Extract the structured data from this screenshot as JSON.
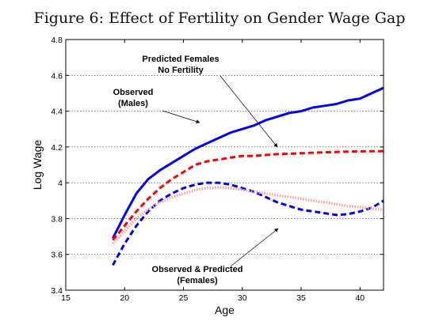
{
  "figure_title": "Figure 6: Effect of Fertility on Gender Wage Gap",
  "chart_data": {
    "type": "line",
    "xlabel": "Age",
    "ylabel": "Log Wage",
    "xlim": [
      15,
      42
    ],
    "ylim": [
      3.4,
      4.8
    ],
    "xticks": [
      15,
      20,
      25,
      30,
      35,
      40
    ],
    "yticks": [
      3.4,
      3.6,
      3.8,
      4,
      4.2,
      4.4,
      4.6,
      4.8
    ],
    "xtick_labels": [
      "15",
      "20",
      "25",
      "30",
      "35",
      "40"
    ],
    "ytick_labels": [
      "3.4",
      "3.6",
      "3.8",
      "4",
      "4.2",
      "4.4",
      "4.6",
      "4.8"
    ],
    "grid": "horizontal dotted",
    "series": [
      {
        "id": "males",
        "color": "#0000ff",
        "style": "solid",
        "x": [
          19,
          20,
          21,
          22,
          23,
          24,
          25,
          26,
          27,
          28,
          29,
          30,
          31,
          32,
          33,
          34,
          35,
          36,
          37,
          38,
          39,
          40,
          41,
          42
        ],
        "y": [
          3.69,
          3.82,
          3.94,
          4.02,
          4.07,
          4.11,
          4.15,
          4.19,
          4.22,
          4.25,
          4.28,
          4.3,
          4.32,
          4.35,
          4.37,
          4.39,
          4.4,
          4.42,
          4.43,
          4.44,
          4.46,
          4.47,
          4.5,
          4.53
        ]
      },
      {
        "id": "predicted-females-no-fertility",
        "color": "#ff0000",
        "style": "dashed",
        "x": [
          19,
          20,
          21,
          22,
          23,
          24,
          25,
          26,
          27,
          28,
          29,
          30,
          31,
          32,
          33,
          34,
          35,
          36,
          37,
          38,
          39,
          40,
          41,
          42
        ],
        "y": [
          3.68,
          3.76,
          3.84,
          3.91,
          3.97,
          4.02,
          4.06,
          4.1,
          4.12,
          4.13,
          4.14,
          4.15,
          4.15,
          4.155,
          4.16,
          4.162,
          4.165,
          4.168,
          4.17,
          4.172,
          4.174,
          4.175,
          4.176,
          4.177
        ]
      },
      {
        "id": "observed-females",
        "color": "#0000ff",
        "style": "dashed",
        "x": [
          19,
          20,
          21,
          22,
          23,
          24,
          25,
          26,
          27,
          28,
          29,
          30,
          31,
          32,
          33,
          34,
          35,
          36,
          37,
          38,
          39,
          40,
          41,
          42
        ],
        "y": [
          3.54,
          3.66,
          3.76,
          3.84,
          3.9,
          3.94,
          3.97,
          3.99,
          4.0,
          4.0,
          3.99,
          3.97,
          3.95,
          3.92,
          3.89,
          3.87,
          3.85,
          3.84,
          3.83,
          3.82,
          3.825,
          3.84,
          3.86,
          3.9
        ]
      },
      {
        "id": "predicted-females",
        "color": "#ff9999",
        "style": "dotted",
        "x": [
          19,
          20,
          21,
          22,
          23,
          24,
          25,
          26,
          27,
          28,
          29,
          30,
          31,
          32,
          33,
          34,
          35,
          36,
          37,
          38,
          39,
          40,
          41,
          42
        ],
        "y": [
          3.66,
          3.73,
          3.8,
          3.85,
          3.89,
          3.92,
          3.94,
          3.96,
          3.97,
          3.975,
          3.97,
          3.96,
          3.95,
          3.94,
          3.93,
          3.92,
          3.91,
          3.9,
          3.89,
          3.88,
          3.87,
          3.865,
          3.855,
          3.85
        ]
      }
    ],
    "annotations": [
      {
        "id": "ann-predicted-no-fertility",
        "lines": [
          "Predicted Females",
          "No Fertility"
        ]
      },
      {
        "id": "ann-observed-males",
        "lines": [
          "Observed",
          "(Males)"
        ]
      },
      {
        "id": "ann-observed-predicted-females",
        "lines": [
          "Observed & Predicted",
          "(Females)"
        ]
      }
    ]
  }
}
